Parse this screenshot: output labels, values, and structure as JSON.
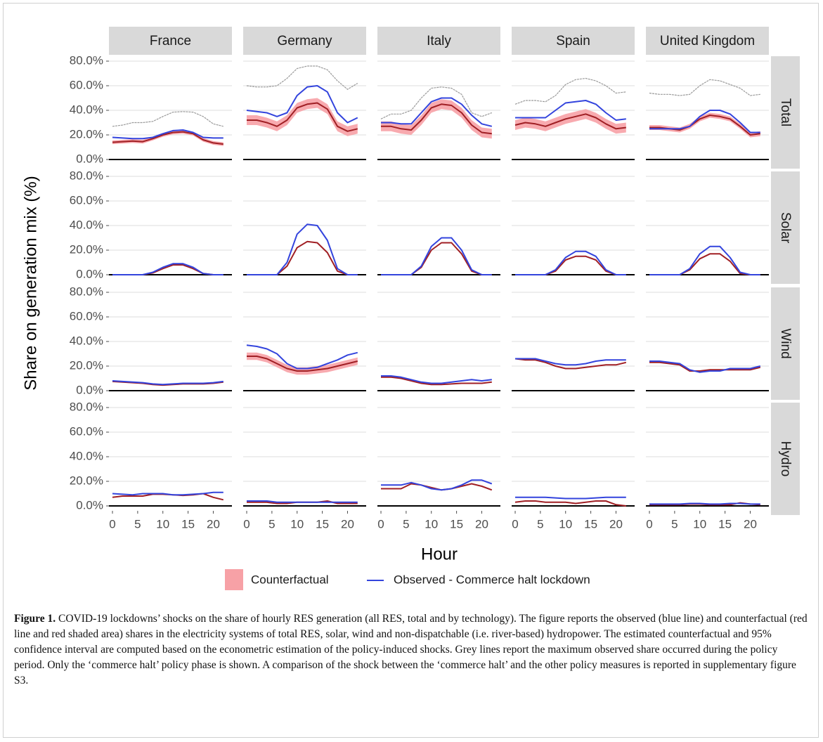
{
  "chart_data": {
    "type": "line",
    "columns": [
      "France",
      "Germany",
      "Italy",
      "Spain",
      "United Kingdom"
    ],
    "rows": [
      "Total",
      "Solar",
      "Wind",
      "Hydro"
    ],
    "ylabel": "Share on generation mix (%)",
    "xlabel": "Hour",
    "x": [
      0,
      2,
      4,
      6,
      8,
      10,
      12,
      14,
      16,
      18,
      20,
      22
    ],
    "xlim": [
      -0.7,
      23.7
    ],
    "xticks": [
      0,
      5,
      10,
      15,
      20
    ],
    "ylim": [
      -4,
      84
    ],
    "yticks": [
      {
        "value": 0,
        "label": "0.0%"
      },
      {
        "value": 20,
        "label": "20.0%"
      },
      {
        "value": 40,
        "label": "40.0%"
      },
      {
        "value": 60,
        "label": "60.0%"
      },
      {
        "value": 80,
        "label": "80.0%"
      }
    ],
    "grid": true,
    "colors": {
      "observed": "#3344dd",
      "counterfactual": "#a01f24",
      "band": "#f7a1a6",
      "maximum": "#9a9a9a"
    },
    "legend": [
      {
        "name": "Counterfactual",
        "color": "#f7a1a6"
      },
      {
        "name": "Observed - Commerce halt lockdown",
        "color": "#3344dd"
      }
    ],
    "panels": [
      [
        {
          "observed": [
            18,
            17.5,
            17,
            17,
            18,
            21,
            23.5,
            24,
            22,
            18,
            17.5,
            17.5
          ],
          "counterfactual": [
            14,
            14.5,
            15,
            14.5,
            17,
            20,
            22,
            22.5,
            21,
            16,
            13.5,
            12.5
          ],
          "lower": [
            12.5,
            13,
            13.5,
            13,
            15.5,
            18.5,
            20.5,
            21,
            19.5,
            14.5,
            12,
            11
          ],
          "upper": [
            15.5,
            16,
            16.5,
            16,
            18.5,
            21.5,
            23.5,
            24,
            22.5,
            17.5,
            15,
            14
          ],
          "maximum": [
            27,
            28,
            30,
            30,
            31,
            35,
            38.5,
            39,
            38.5,
            35,
            29,
            27
          ]
        },
        {
          "observed": [
            40,
            39,
            38,
            35,
            38,
            52,
            59,
            60,
            55,
            38,
            30,
            34
          ],
          "counterfactual": [
            32,
            32,
            30,
            27,
            32,
            42,
            45,
            46,
            41,
            27,
            23,
            25
          ],
          "lower": [
            28,
            28,
            26,
            23,
            28,
            38,
            41,
            42,
            37,
            23,
            19,
            21
          ],
          "upper": [
            36,
            36,
            34,
            31,
            36,
            46,
            49,
            50,
            45,
            31,
            27,
            29
          ],
          "maximum": [
            60,
            59,
            59,
            60,
            66,
            74,
            76,
            76,
            73,
            64,
            57,
            62
          ]
        },
        {
          "observed": [
            30,
            30,
            29,
            29,
            38,
            47,
            50,
            50,
            45,
            36,
            29,
            27
          ],
          "counterfactual": [
            27,
            27,
            25,
            24,
            32,
            42,
            45,
            44,
            38,
            28,
            22,
            21
          ],
          "lower": [
            23,
            23,
            21,
            20,
            28,
            38,
            41,
            40,
            34,
            24,
            18,
            17
          ],
          "upper": [
            31,
            31,
            29,
            28,
            36,
            46,
            49,
            48,
            42,
            32,
            26,
            25
          ],
          "maximum": [
            33,
            37,
            37,
            40,
            50,
            58,
            59,
            58,
            53,
            38,
            35,
            38
          ]
        },
        {
          "observed": [
            34,
            34,
            34,
            34,
            40,
            46,
            47,
            48,
            45,
            38,
            32,
            33
          ],
          "counterfactual": [
            28,
            30,
            29,
            27,
            30,
            33,
            35,
            37,
            34,
            29,
            25,
            26
          ],
          "lower": [
            24,
            26,
            25,
            23,
            26,
            29,
            31,
            33,
            30,
            25,
            21,
            22
          ],
          "upper": [
            32,
            34,
            33,
            31,
            34,
            37,
            39,
            41,
            38,
            33,
            29,
            30
          ],
          "maximum": [
            45,
            48,
            48,
            47,
            52,
            61,
            65,
            66,
            64,
            60,
            54,
            55
          ]
        },
        {
          "observed": [
            25,
            25,
            25,
            25,
            27,
            35,
            40,
            40,
            37,
            30,
            22,
            22
          ],
          "counterfactual": [
            26,
            26,
            25,
            24,
            27,
            33,
            36,
            35,
            33,
            27,
            20,
            21
          ],
          "lower": [
            24,
            24,
            23,
            22,
            25,
            31,
            34,
            33,
            31,
            25,
            18,
            19
          ],
          "upper": [
            28,
            28,
            27,
            26,
            29,
            35,
            38,
            37,
            35,
            29,
            22,
            23
          ],
          "maximum": [
            54,
            53,
            53,
            52,
            53,
            60,
            65,
            64,
            61,
            58,
            52,
            53
          ]
        }
      ],
      [
        {
          "observed": [
            0,
            0,
            0,
            0,
            2,
            6,
            9,
            9,
            6,
            1,
            0,
            0
          ],
          "counterfactual": [
            0,
            0,
            0,
            0,
            1.5,
            5,
            8,
            8,
            5,
            1,
            0,
            0
          ]
        },
        {
          "observed": [
            0,
            0,
            0,
            0,
            10,
            33,
            41,
            40,
            28,
            5,
            0,
            0
          ],
          "counterfactual": [
            0,
            0,
            0,
            0,
            7,
            22,
            27,
            26,
            18,
            3,
            0,
            0
          ]
        },
        {
          "observed": [
            0,
            0,
            0,
            0,
            7,
            23,
            30,
            30,
            20,
            4,
            0,
            0
          ],
          "counterfactual": [
            0,
            0,
            0,
            0,
            6,
            20,
            26,
            26,
            17,
            3,
            0,
            0
          ]
        },
        {
          "observed": [
            0,
            0,
            0,
            0,
            4,
            14,
            19,
            19,
            15,
            4,
            0,
            0
          ],
          "counterfactual": [
            0,
            0,
            0,
            0,
            3,
            12,
            15,
            15,
            12,
            3,
            0,
            0
          ]
        },
        {
          "observed": [
            0,
            0,
            0,
            0,
            5,
            17,
            23,
            23,
            14,
            2,
            0,
            0
          ],
          "counterfactual": [
            0,
            0,
            0,
            0,
            4,
            13,
            17,
            17,
            11,
            1,
            0,
            0
          ]
        }
      ],
      [
        {
          "observed": [
            8,
            7.5,
            7,
            6.5,
            5.5,
            5,
            5.5,
            6,
            6,
            6,
            6.5,
            7.5
          ],
          "counterfactual": [
            7.5,
            7,
            6.5,
            6,
            5,
            4.5,
            5,
            5.5,
            5.5,
            5.5,
            6,
            7
          ]
        },
        {
          "observed": [
            37,
            36,
            34,
            30,
            22,
            18,
            18,
            19,
            22,
            25,
            29,
            31
          ],
          "counterfactual": [
            28,
            28,
            26,
            22,
            18,
            16,
            16,
            17,
            18,
            20,
            22,
            24
          ],
          "lower": [
            25,
            25,
            23,
            19,
            15,
            13,
            13,
            14,
            15,
            17,
            19,
            21
          ],
          "upper": [
            31,
            31,
            29,
            25,
            21,
            19,
            19,
            20,
            21,
            23,
            25,
            27
          ]
        },
        {
          "observed": [
            12,
            12,
            11,
            9,
            7,
            6,
            6,
            7,
            8,
            9,
            8,
            9
          ],
          "counterfactual": [
            11,
            11,
            10,
            8,
            6,
            5,
            5,
            5.5,
            6,
            6,
            6,
            7
          ]
        },
        {
          "observed": [
            26,
            26,
            26,
            24,
            22,
            21,
            21,
            22,
            24,
            25,
            25,
            25
          ],
          "counterfactual": [
            26,
            25,
            25,
            23,
            20,
            18,
            18,
            19,
            20,
            21,
            21,
            23
          ]
        },
        {
          "observed": [
            24,
            24,
            23,
            22,
            17,
            15,
            16,
            16,
            18,
            18,
            18,
            20
          ],
          "counterfactual": [
            23,
            23,
            22,
            21,
            16,
            16,
            17,
            17,
            17,
            17,
            17,
            19
          ]
        }
      ],
      [
        {
          "observed": [
            10,
            9.5,
            9,
            10,
            10,
            10,
            9,
            9,
            9.5,
            10,
            11,
            11
          ],
          "counterfactual": [
            7,
            8,
            8,
            8,
            9.5,
            9.5,
            9,
            8.5,
            9,
            10,
            7,
            5
          ]
        },
        {
          "observed": [
            4,
            4,
            4,
            3,
            3,
            3,
            3,
            3,
            3,
            3,
            3,
            3
          ],
          "counterfactual": [
            3,
            3,
            3,
            2,
            2,
            3,
            3,
            3,
            4,
            2,
            2,
            2
          ]
        },
        {
          "observed": [
            17,
            17,
            17,
            19,
            17,
            14,
            13,
            14,
            17,
            21,
            21,
            18
          ],
          "counterfactual": [
            14,
            14,
            14,
            18,
            17,
            15,
            13,
            14,
            16,
            18,
            16,
            13
          ]
        },
        {
          "observed": [
            7,
            7,
            7,
            7,
            6.5,
            6,
            6,
            6,
            6.5,
            7,
            7,
            7
          ],
          "counterfactual": [
            3,
            4,
            4,
            3,
            3,
            3,
            2,
            3,
            4,
            4,
            1,
            0
          ]
        },
        {
          "observed": [
            1.5,
            1.5,
            1.5,
            1.5,
            2,
            2,
            1.5,
            1.5,
            2,
            2,
            1.5,
            1.5
          ],
          "counterfactual": [
            1,
            1,
            1,
            1,
            1.5,
            1.5,
            1,
            1,
            1,
            2.5,
            1.5,
            1
          ]
        }
      ]
    ]
  },
  "caption": {
    "label": "Figure 1.",
    "text": "COVID-19 lockdowns’ shocks on the share of hourly RES generation (all RES, total and by technology). The figure reports the observed (blue line) and counterfactual (red line and red shaded area) shares in the electricity systems of total RES, solar, wind and non-dispatchable (i.e. river-based) hydropower. The estimated counterfactual and 95% confidence interval are computed based on the econometric estimation of the policy-induced shocks. Grey lines report the maximum observed share occurred during the policy period. Only the ‘commerce halt’ policy phase is shown. A comparison of the shock between the ‘commerce halt’ and the other policy measures is reported in supplementary figure S3."
  }
}
